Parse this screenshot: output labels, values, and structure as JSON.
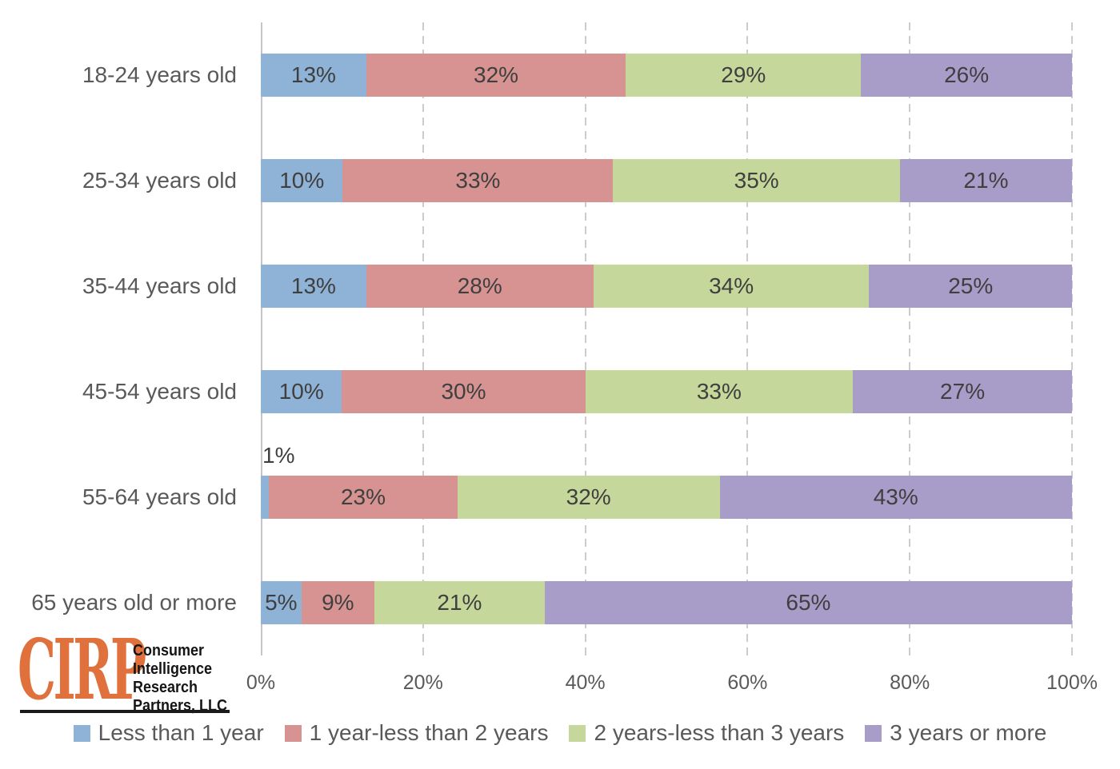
{
  "chart_data": {
    "type": "bar",
    "orientation": "horizontal",
    "stacked": true,
    "grid": "vertical-dashed",
    "legend_position": "bottom",
    "data_labels": "inside-center",
    "categories": [
      "18-24 years old",
      "25-34 years old",
      "35-44 years old",
      "45-54 years old",
      "55-64 years old",
      "65 years old or more"
    ],
    "series": [
      {
        "name": "Less than 1 year",
        "color": "#8FB2D7",
        "values": [
          13,
          10,
          13,
          10,
          1,
          5
        ],
        "labels": [
          "13%",
          "10%",
          "13%",
          "10%",
          "1%",
          "5%"
        ]
      },
      {
        "name": "1 year-less than 2 years",
        "color": "#D69392",
        "values": [
          32,
          33,
          28,
          30,
          23,
          9
        ],
        "labels": [
          "32%",
          "33%",
          "28%",
          "30%",
          "23%",
          "9%"
        ]
      },
      {
        "name": "2 years-less than 3 years",
        "color": "#C5D79B",
        "values": [
          29,
          35,
          34,
          33,
          32,
          21
        ],
        "labels": [
          "29%",
          "35%",
          "34%",
          "33%",
          "32%",
          "21%"
        ]
      },
      {
        "name": "3 years or more",
        "color": "#A89CC8",
        "values": [
          26,
          21,
          25,
          27,
          43,
          65
        ],
        "labels": [
          "26%",
          "21%",
          "25%",
          "27%",
          "43%",
          "65%"
        ]
      }
    ],
    "x_axis": {
      "min": 0,
      "max": 100,
      "ticks": [
        "0%",
        "20%",
        "40%",
        "60%",
        "80%",
        "100%"
      ]
    }
  },
  "logo": {
    "abbr": "CIRP",
    "lines": [
      "Consumer",
      "Intelligence",
      "Research",
      "Partners, LLC"
    ],
    "orange": "#E0703C"
  },
  "colors": {
    "data_label": "#3F3F3F",
    "axis_label": "#595959",
    "gridline": "#CCCCCC"
  }
}
